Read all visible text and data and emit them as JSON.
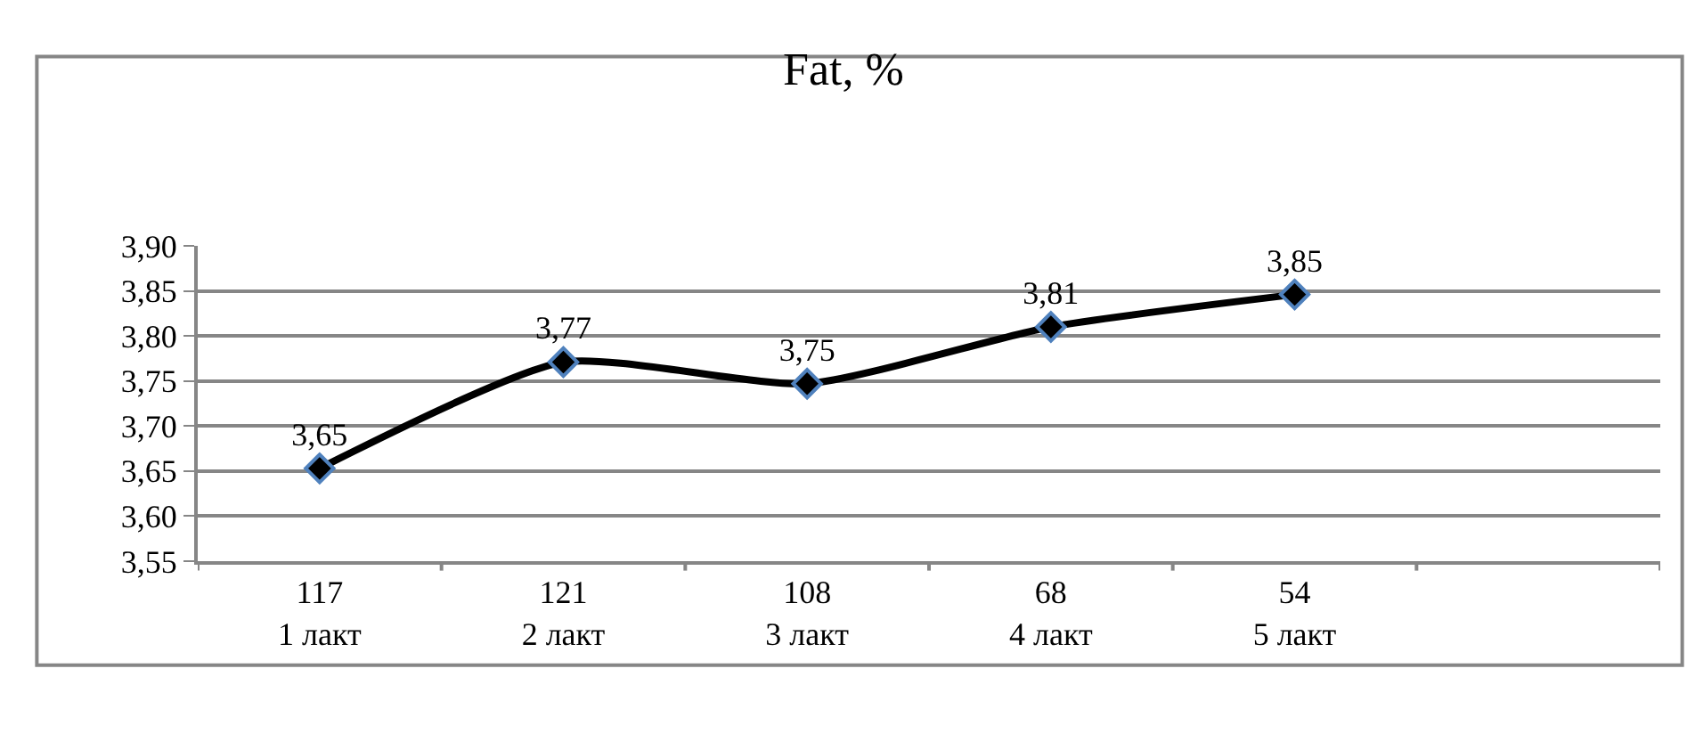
{
  "chart_data": {
    "type": "line",
    "title": "Fat, %",
    "categories": [
      "117\n1 лакт",
      "121\n2 лакт",
      "108\n3 лакт",
      "68\n4 лакт",
      "54\n5 лакт",
      null
    ],
    "series": [
      {
        "color": "#000000",
        "values": [
          3.653,
          3.771,
          3.747,
          3.81,
          3.846,
          null
        ],
        "value_labels": [
          "3,65",
          "3,77",
          "3,75",
          "3,81",
          "3,85",
          null
        ]
      }
    ],
    "ylim": [
      3.55,
      3.9
    ],
    "yticks": [
      {
        "value": 3.55,
        "label": "3,55"
      },
      {
        "value": 3.6,
        "label": "3,60"
      },
      {
        "value": 3.65,
        "label": "3,65"
      },
      {
        "value": 3.7,
        "label": "3,70"
      },
      {
        "value": 3.75,
        "label": "3,75"
      },
      {
        "value": 3.8,
        "label": "3,80"
      },
      {
        "value": 3.85,
        "label": "3,85"
      },
      {
        "value": 3.9,
        "label": "3,90"
      }
    ],
    "grid": "y",
    "marker": "diamond",
    "line_style": "solid"
  }
}
